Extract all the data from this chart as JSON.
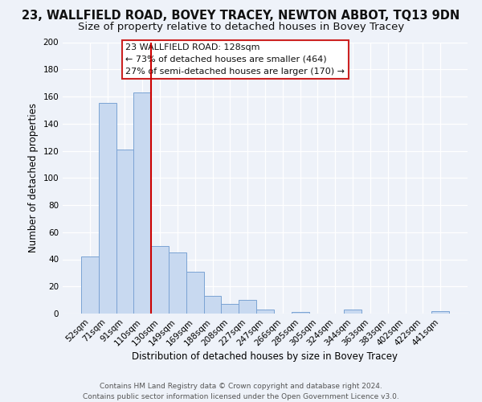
{
  "title": "23, WALLFIELD ROAD, BOVEY TRACEY, NEWTON ABBOT, TQ13 9DN",
  "subtitle": "Size of property relative to detached houses in Bovey Tracey",
  "xlabel": "Distribution of detached houses by size in Bovey Tracey",
  "ylabel": "Number of detached properties",
  "bar_labels": [
    "52sqm",
    "71sqm",
    "91sqm",
    "110sqm",
    "130sqm",
    "149sqm",
    "169sqm",
    "188sqm",
    "208sqm",
    "227sqm",
    "247sqm",
    "266sqm",
    "285sqm",
    "305sqm",
    "324sqm",
    "344sqm",
    "363sqm",
    "383sqm",
    "402sqm",
    "422sqm",
    "441sqm"
  ],
  "bar_values": [
    42,
    155,
    121,
    163,
    50,
    45,
    31,
    13,
    7,
    10,
    3,
    0,
    1,
    0,
    0,
    3,
    0,
    0,
    0,
    0,
    2
  ],
  "bar_color": "#c8d9f0",
  "bar_edge_color": "#7ba3d4",
  "ylim": [
    0,
    200
  ],
  "yticks": [
    0,
    20,
    40,
    60,
    80,
    100,
    120,
    140,
    160,
    180,
    200
  ],
  "vline_index": 4,
  "vline_color": "#cc0000",
  "annotation_title": "23 WALLFIELD ROAD: 128sqm",
  "annotation_line1": "← 73% of detached houses are smaller (464)",
  "annotation_line2": "27% of semi-detached houses are larger (170) →",
  "footer_line1": "Contains HM Land Registry data © Crown copyright and database right 2024.",
  "footer_line2": "Contains public sector information licensed under the Open Government Licence v3.0.",
  "background_color": "#eef2f9",
  "grid_color": "#ffffff",
  "title_fontsize": 10.5,
  "subtitle_fontsize": 9.5,
  "axis_label_fontsize": 8.5,
  "tick_fontsize": 7.5,
  "annotation_fontsize": 8.0,
  "footer_fontsize": 6.5
}
